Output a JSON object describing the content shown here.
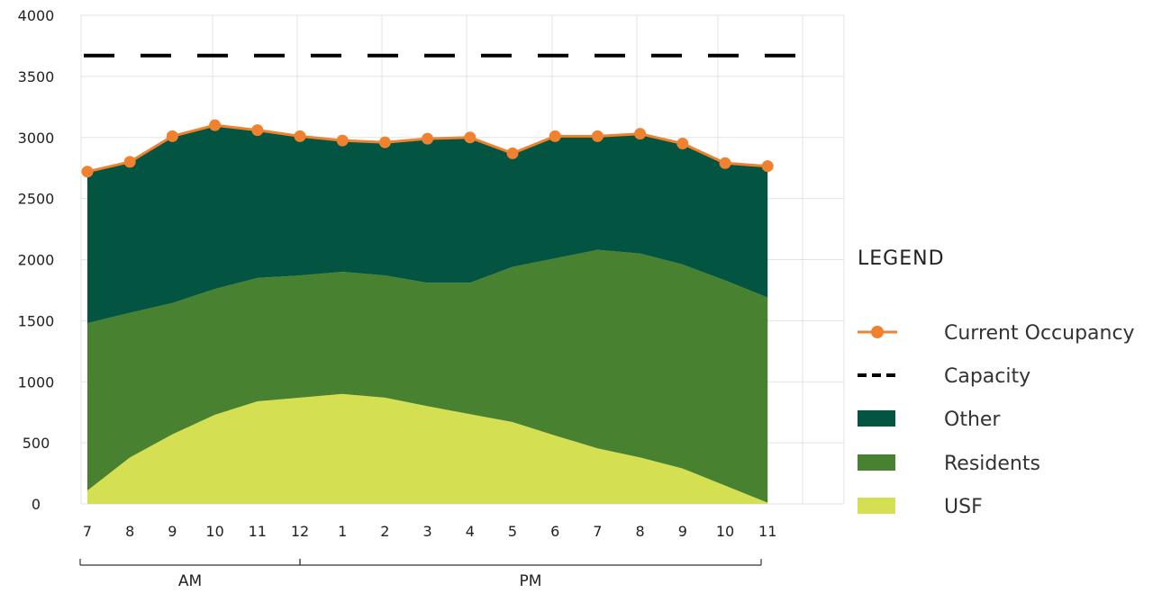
{
  "chart_data": {
    "type": "area",
    "categories": [
      "7",
      "8",
      "9",
      "10",
      "11",
      "12",
      "1",
      "2",
      "3",
      "4",
      "5",
      "6",
      "7",
      "8",
      "9",
      "10",
      "11"
    ],
    "x_groups": [
      {
        "label": "AM",
        "from_index": 0,
        "to_index": 5
      },
      {
        "label": "PM",
        "from_index": 5,
        "to_index": 16
      }
    ],
    "ylim": [
      0,
      4000
    ],
    "yticks": [
      0,
      500,
      1000,
      1500,
      2000,
      2500,
      3000,
      3500,
      4000
    ],
    "ytick_labels": [
      "0",
      "500",
      "1000",
      "1500",
      "2000",
      "2500",
      "3000",
      "3500",
      "4000"
    ],
    "grid": true,
    "stacked": true,
    "series": [
      {
        "name": "USF",
        "kind": "area",
        "color": "#d4df52",
        "values": [
          110,
          380,
          570,
          730,
          840,
          870,
          900,
          870,
          800,
          735,
          670,
          560,
          455,
          380,
          290,
          150,
          10
        ]
      },
      {
        "name": "Residents",
        "kind": "area",
        "color": "#48812f",
        "values": [
          1370,
          1185,
          1075,
          1030,
          1010,
          1000,
          1000,
          1000,
          1010,
          1075,
          1270,
          1450,
          1625,
          1670,
          1670,
          1680,
          1680
        ]
      },
      {
        "name": "Other",
        "kind": "area",
        "color": "#035440",
        "values": [
          1240,
          1235,
          1365,
          1340,
          1210,
          1140,
          1075,
          1090,
          1180,
          1190,
          930,
          1000,
          930,
          980,
          990,
          960,
          1075
        ]
      },
      {
        "name": "Current Occupancy",
        "kind": "line",
        "color": "#f0812f",
        "values": [
          2720,
          2800,
          3010,
          3100,
          3060,
          3010,
          2975,
          2960,
          2990,
          3000,
          2870,
          3010,
          3010,
          3030,
          2950,
          2790,
          2765
        ]
      },
      {
        "name": "Capacity",
        "kind": "dashed-line",
        "color": "#000000",
        "values": [
          3670,
          3670,
          3670,
          3670,
          3670,
          3670,
          3670,
          3670,
          3670,
          3670,
          3670,
          3670,
          3670,
          3670,
          3670,
          3670,
          3670
        ]
      }
    ],
    "legend": {
      "title": "LEGEND",
      "placement": "right",
      "entries": [
        {
          "label": "Current Occupancy",
          "marker": "line-dot",
          "color": "#f0812f"
        },
        {
          "label": "Capacity",
          "marker": "dashed-line",
          "color": "#000000"
        },
        {
          "label": "Other",
          "marker": "box",
          "color": "#035440"
        },
        {
          "label": "Residents",
          "marker": "box",
          "color": "#48812f"
        },
        {
          "label": "USF",
          "marker": "box",
          "color": "#d4df52"
        }
      ]
    }
  }
}
